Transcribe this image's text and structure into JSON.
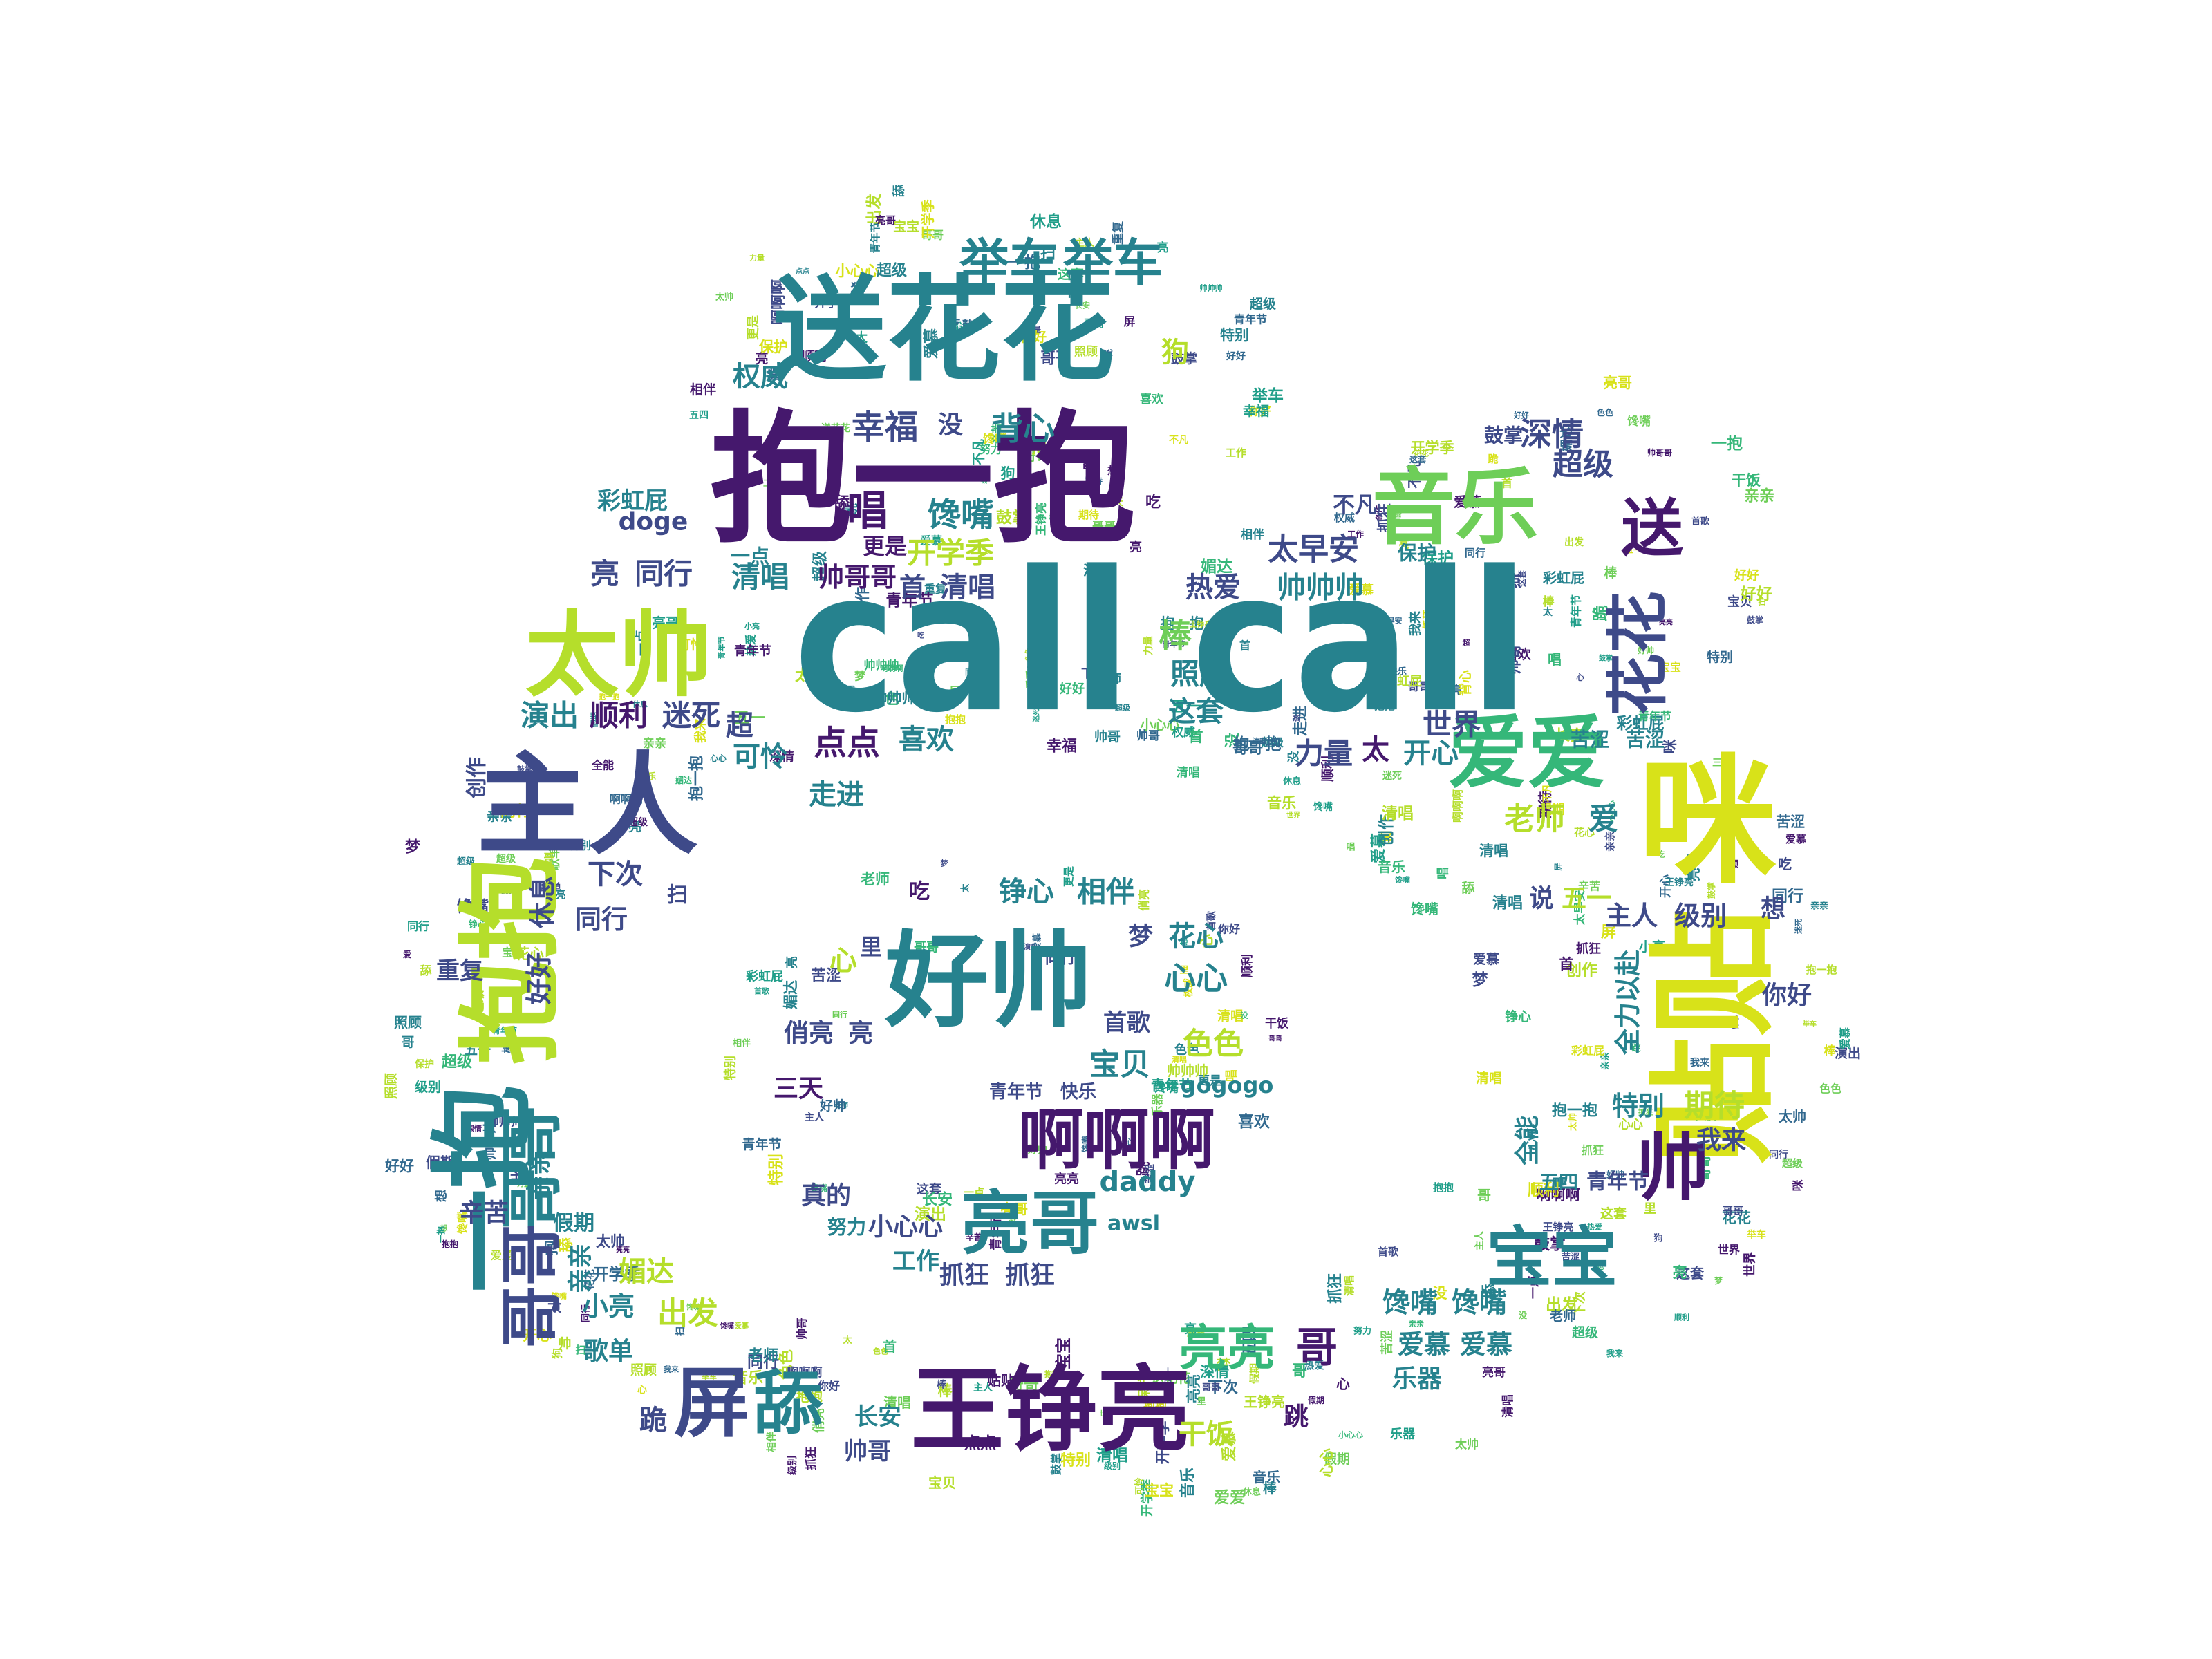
{
  "palette": {
    "dark_purple": "#45186d",
    "indigo": "#3e4a89",
    "blue": "#31688e",
    "teal": "#26828e",
    "green_teal": "#1f9e89",
    "green": "#35b779",
    "lime": "#6ece58",
    "yellow_green": "#b5de2b",
    "yellow": "#d8e219"
  },
  "words": [
    {
      "text": "call call",
      "color": "#26828e"
    },
    {
      "text": "抱一抱",
      "color": "#45186d"
    },
    {
      "text": "送花花",
      "color": "#26828e"
    },
    {
      "text": "抱抱",
      "color": "#b5de2b"
    },
    {
      "text": "一抱",
      "color": "#26828e"
    },
    {
      "text": "主人",
      "color": "#3e4a89"
    },
    {
      "text": "太帅",
      "color": "#b5de2b"
    },
    {
      "text": "好帅",
      "color": "#26828e"
    },
    {
      "text": "王铮亮",
      "color": "#45186d"
    },
    {
      "text": "咪",
      "color": "#d8e219"
    },
    {
      "text": "贴贴",
      "color": "#d8e219"
    },
    {
      "text": "音乐",
      "color": "#6ece58"
    },
    {
      "text": "举车",
      "color": "#26828e"
    },
    {
      "text": "举车",
      "color": "#26828e"
    },
    {
      "text": "爱爱",
      "color": "#35b779"
    },
    {
      "text": "啊啊啊",
      "color": "#45186d"
    },
    {
      "text": "亮哥",
      "color": "#26828e"
    },
    {
      "text": "屏",
      "color": "#3e4a89"
    },
    {
      "text": "舔",
      "color": "#26828e"
    },
    {
      "text": "宝宝",
      "color": "#26828e"
    },
    {
      "text": "帅",
      "color": "#45186d"
    },
    {
      "text": "亮亮",
      "color": "#35b779"
    },
    {
      "text": "哥哥",
      "color": "#26828e"
    },
    {
      "text": "哥哥",
      "color": "#3e4a89"
    },
    {
      "text": "送",
      "color": "#45186d"
    },
    {
      "text": "花花",
      "color": "#3e4a89"
    },
    {
      "text": "幸福",
      "color": "#3e4a89"
    },
    {
      "text": "背心",
      "color": "#26828e"
    },
    {
      "text": "馋嘴",
      "color": "#26828e"
    },
    {
      "text": "唱",
      "color": "#45186d"
    },
    {
      "text": "开学季",
      "color": "#b5de2b"
    },
    {
      "text": "太早安",
      "color": "#3e4a89"
    },
    {
      "text": "帅帅帅",
      "color": "#26828e"
    },
    {
      "text": "深情",
      "color": "#3e4a89"
    },
    {
      "text": "超级",
      "color": "#3e4a89"
    },
    {
      "text": "权威",
      "color": "#26828e"
    },
    {
      "text": "彩虹屁",
      "color": "#26828e"
    },
    {
      "text": "doge",
      "color": "#3e4a89"
    },
    {
      "text": "亮",
      "color": "#3e4a89"
    },
    {
      "text": "同行",
      "color": "#3e4a89"
    },
    {
      "text": "清唱",
      "color": "#26828e"
    },
    {
      "text": "帅哥哥",
      "color": "#45186d"
    },
    {
      "text": "首",
      "color": "#3e4a89"
    },
    {
      "text": "清唱",
      "color": "#3e4a89"
    },
    {
      "text": "热爱",
      "color": "#3e4a89"
    },
    {
      "text": "照顾",
      "color": "#26828e"
    },
    {
      "text": "棒",
      "color": "#6ece58"
    },
    {
      "text": "这套",
      "color": "#26828e"
    },
    {
      "text": "演出",
      "color": "#26828e"
    },
    {
      "text": "顺利",
      "color": "#45186d"
    },
    {
      "text": "迷死",
      "color": "#3e4a89"
    },
    {
      "text": "点点",
      "color": "#45186d"
    },
    {
      "text": "喜欢",
      "color": "#26828e"
    },
    {
      "text": "可怜",
      "color": "#26828e"
    },
    {
      "text": "走进",
      "color": "#26828e"
    },
    {
      "text": "世界",
      "color": "#3e4a89"
    },
    {
      "text": "力量",
      "color": "#3e4a89"
    },
    {
      "text": "太",
      "color": "#45186d"
    },
    {
      "text": "开心",
      "color": "#26828e"
    },
    {
      "text": "老师",
      "color": "#b5de2b"
    },
    {
      "text": "爱",
      "color": "#26828e"
    },
    {
      "text": "铮心",
      "color": "#26828e"
    },
    {
      "text": "相伴",
      "color": "#26828e"
    },
    {
      "text": "心心",
      "color": "#26828e"
    },
    {
      "text": "梦",
      "color": "#3e4a89"
    },
    {
      "text": "花心",
      "color": "#26828e"
    },
    {
      "text": "宝贝",
      "color": "#26828e"
    },
    {
      "text": "色色",
      "color": "#b5de2b"
    },
    {
      "text": "gogogo",
      "color": "#26828e"
    },
    {
      "text": "首歌",
      "color": "#3e4a89"
    },
    {
      "text": "俏亮",
      "color": "#3e4a89"
    },
    {
      "text": "亮",
      "color": "#3e4a89"
    },
    {
      "text": "三天",
      "color": "#45186d"
    },
    {
      "text": "daddy",
      "color": "#26828e"
    },
    {
      "text": "awsl",
      "color": "#26828e"
    },
    {
      "text": "抓狂",
      "color": "#3e4a89"
    },
    {
      "text": "抓狂",
      "color": "#3e4a89"
    },
    {
      "text": "小心心",
      "color": "#3e4a89"
    },
    {
      "text": "工作",
      "color": "#26828e"
    },
    {
      "text": "真的",
      "color": "#3e4a89"
    },
    {
      "text": "努力",
      "color": "#26828e"
    },
    {
      "text": "青年节",
      "color": "#3e4a89"
    },
    {
      "text": "快乐",
      "color": "#3e4a89"
    },
    {
      "text": "主人",
      "color": "#3e4a89"
    },
    {
      "text": "级别",
      "color": "#3e4a89"
    },
    {
      "text": "期待",
      "color": "#b5de2b"
    },
    {
      "text": "特别",
      "color": "#26828e"
    },
    {
      "text": "我来",
      "color": "#3e4a89"
    },
    {
      "text": "你好",
      "color": "#3e4a89"
    },
    {
      "text": "馋嘴",
      "color": "#26828e"
    },
    {
      "text": "馋嘴",
      "color": "#26828e"
    },
    {
      "text": "爱慕",
      "color": "#26828e"
    },
    {
      "text": "爱慕",
      "color": "#26828e"
    },
    {
      "text": "乐器",
      "color": "#26828e"
    },
    {
      "text": "哥",
      "color": "#45186d"
    },
    {
      "text": "出发",
      "color": "#b5de2b"
    },
    {
      "text": "小亮",
      "color": "#26828e"
    },
    {
      "text": "歌单",
      "color": "#26828e"
    },
    {
      "text": "跪",
      "color": "#3e4a89"
    },
    {
      "text": "长安",
      "color": "#26828e"
    },
    {
      "text": "帅哥",
      "color": "#3e4a89"
    },
    {
      "text": "干饭",
      "color": "#b5de2b"
    },
    {
      "text": "跳",
      "color": "#45186d"
    },
    {
      "text": "辛苦",
      "color": "#3e4a89"
    },
    {
      "text": "亲亲",
      "color": "#26828e"
    },
    {
      "text": "亲亲",
      "color": "#26828e"
    },
    {
      "text": "假期",
      "color": "#26828e"
    },
    {
      "text": "媚达",
      "color": "#b5de2b"
    },
    {
      "text": "重复",
      "color": "#3e4a89"
    },
    {
      "text": "好好",
      "color": "#3e4a89"
    },
    {
      "text": "下次",
      "color": "#3e4a89"
    },
    {
      "text": "休息",
      "color": "#3e4a89"
    },
    {
      "text": "同行",
      "color": "#3e4a89"
    },
    {
      "text": "创作",
      "color": "#3e4a89"
    },
    {
      "text": "超",
      "color": "#3e4a89"
    },
    {
      "text": "狗",
      "color": "#b5de2b"
    },
    {
      "text": "没",
      "color": "#3e4a89"
    },
    {
      "text": "更是",
      "color": "#45186d"
    },
    {
      "text": "一点",
      "color": "#26828e"
    },
    {
      "text": "五四",
      "color": "#26828e"
    },
    {
      "text": "青年节",
      "color": "#3e4a89"
    },
    {
      "text": "全力以赴",
      "color": "#26828e"
    },
    {
      "text": "全能",
      "color": "#26828e"
    },
    {
      "text": "说",
      "color": "#3e4a89"
    },
    {
      "text": "五一",
      "color": "#b5de2b"
    },
    {
      "text": "想",
      "color": "#3e4a89"
    },
    {
      "text": "苦涩",
      "color": "#26828e"
    },
    {
      "text": "苦涩",
      "color": "#26828e"
    },
    {
      "text": "不凡",
      "color": "#3e4a89"
    },
    {
      "text": "保护",
      "color": "#26828e"
    },
    {
      "text": "鼓掌",
      "color": "#3e4a89"
    },
    {
      "text": "里",
      "color": "#3e4a89"
    },
    {
      "text": "吃",
      "color": "#45186d"
    },
    {
      "text": "扫",
      "color": "#3e4a89"
    },
    {
      "text": "心",
      "color": "#b5de2b"
    },
    {
      "text": "超级",
      "color": "#26828e"
    }
  ]
}
